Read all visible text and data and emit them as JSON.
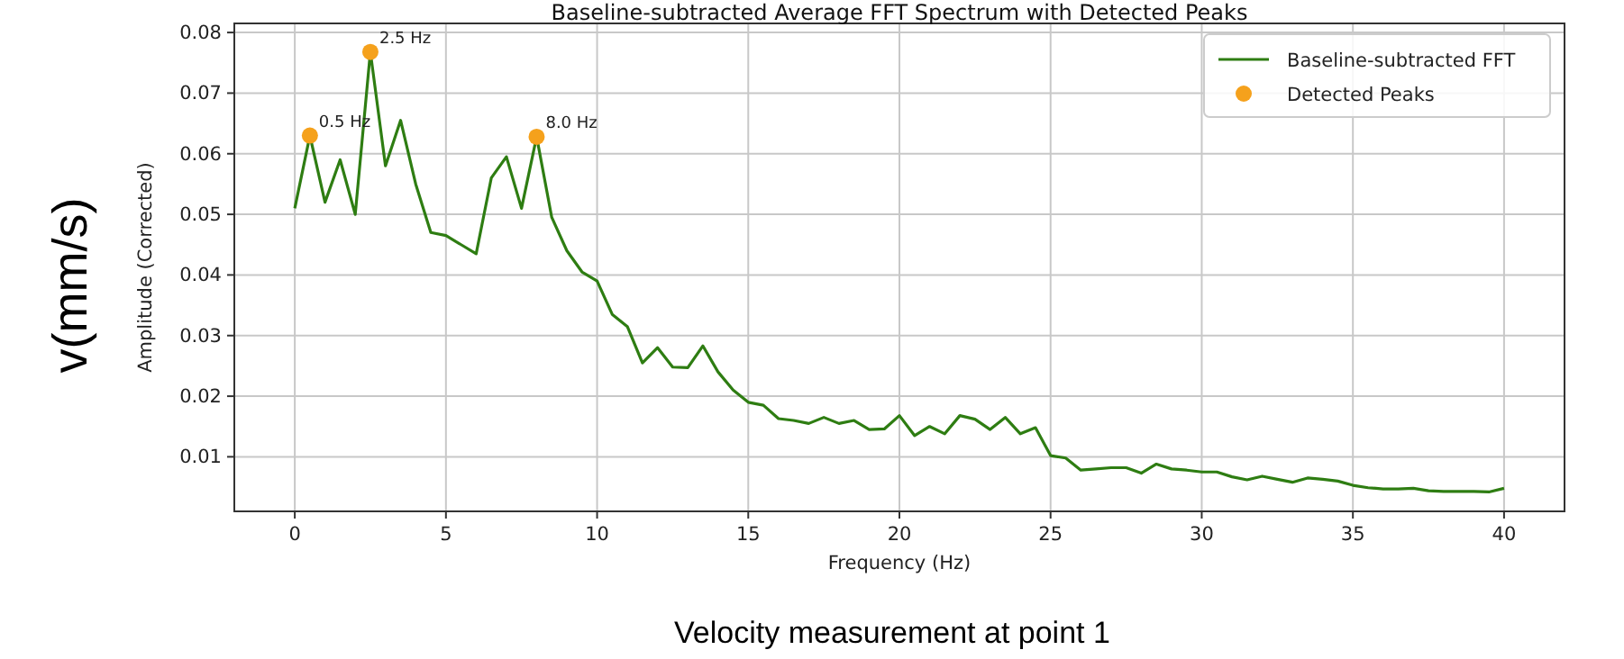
{
  "chart_data": {
    "type": "line",
    "title": "Baseline-subtracted Average FFT Spectrum with Detected Peaks",
    "xlabel": "Frequency (Hz)",
    "ylabel": "Amplitude (Corrected)",
    "x": [
      0,
      0.5,
      1,
      1.5,
      2,
      2.5,
      3,
      3.5,
      4,
      4.5,
      5,
      5.5,
      6,
      6.5,
      7,
      7.5,
      8,
      8.5,
      9,
      9.5,
      10,
      10.5,
      11,
      11.5,
      12,
      12.5,
      13,
      13.5,
      14,
      14.5,
      15,
      15.5,
      16,
      16.5,
      17,
      17.5,
      18,
      18.5,
      19,
      19.5,
      20,
      20.5,
      21,
      21.5,
      22,
      22.5,
      23,
      23.5,
      24,
      24.5,
      25,
      25.5,
      26,
      26.5,
      27,
      27.5,
      28,
      28.5,
      29,
      29.5,
      30,
      30.5,
      31,
      31.5,
      32,
      32.5,
      33,
      33.5,
      34,
      34.5,
      35,
      35.5,
      36,
      36.5,
      37,
      37.5,
      38,
      38.5,
      39,
      39.5,
      40
    ],
    "series": [
      {
        "name": "Baseline-subtracted FFT",
        "color": "#2e7d12",
        "marker": "none",
        "values": [
          0.051,
          0.063,
          0.052,
          0.059,
          0.05,
          0.0768,
          0.058,
          0.0655,
          0.055,
          0.047,
          0.0465,
          0.045,
          0.0435,
          0.056,
          0.0595,
          0.051,
          0.0628,
          0.0495,
          0.044,
          0.0405,
          0.039,
          0.0335,
          0.0315,
          0.0255,
          0.028,
          0.0248,
          0.0247,
          0.0283,
          0.024,
          0.021,
          0.019,
          0.0185,
          0.0163,
          0.016,
          0.0155,
          0.0165,
          0.0155,
          0.016,
          0.0145,
          0.0146,
          0.0168,
          0.0135,
          0.015,
          0.0138,
          0.0168,
          0.0162,
          0.0145,
          0.0165,
          0.0138,
          0.0148,
          0.0102,
          0.0098,
          0.0078,
          0.008,
          0.0082,
          0.0082,
          0.0073,
          0.0088,
          0.008,
          0.0078,
          0.0075,
          0.0075,
          0.0067,
          0.0062,
          0.0068,
          0.0063,
          0.0058,
          0.0065,
          0.0063,
          0.006,
          0.0053,
          0.0049,
          0.0047,
          0.0047,
          0.0048,
          0.0044,
          0.0043,
          0.0043,
          0.0043,
          0.0042,
          0.0048
        ]
      },
      {
        "name": "Detected Peaks",
        "type": "scatter",
        "color": "#f5a11c",
        "marker": "circle",
        "x": [
          0.5,
          2.5,
          8.0
        ],
        "values": [
          0.063,
          0.0768,
          0.0628
        ]
      }
    ],
    "xlim": [
      -2,
      42
    ],
    "xticks": [
      0,
      5,
      10,
      15,
      20,
      25,
      30,
      35,
      40
    ],
    "ylim": [
      0.001,
      0.0815
    ],
    "yticks": [
      0.01,
      0.02,
      0.03,
      0.04,
      0.05,
      0.06,
      0.07,
      0.08
    ],
    "grid": true,
    "legend": "top right",
    "annotations": [
      {
        "text": "0.5 Hz",
        "x": 0.5,
        "y": 0.063
      },
      {
        "text": "2.5 Hz",
        "x": 2.5,
        "y": 0.0768
      },
      {
        "text": "8.0 Hz",
        "x": 8.0,
        "y": 0.0628
      },
      "v(mm/s)",
      "Velocity measurement at point 1"
    ]
  }
}
